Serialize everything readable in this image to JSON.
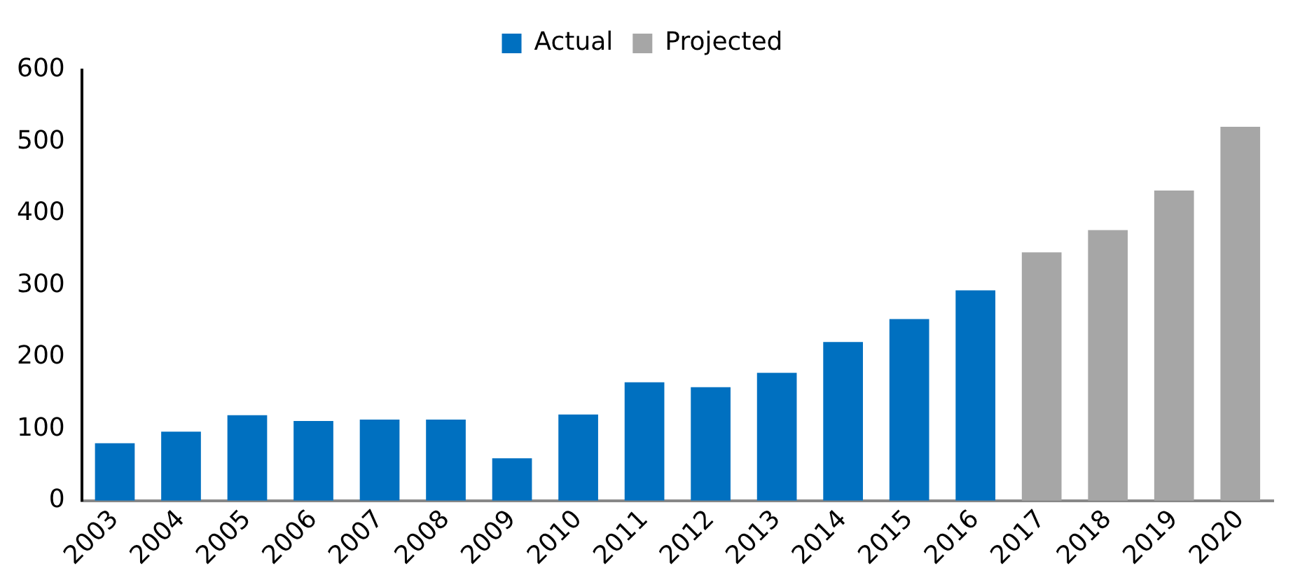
{
  "chart_data": {
    "type": "bar",
    "categories": [
      "2003",
      "2004",
      "2005",
      "2006",
      "2007",
      "2008",
      "2009",
      "2010",
      "2011",
      "2012",
      "2013",
      "2014",
      "2015",
      "2016",
      "2017",
      "2018",
      "2019",
      "2020"
    ],
    "series": [
      {
        "name": "Actual",
        "color": "#0070c0",
        "values": [
          80,
          96,
          119,
          111,
          113,
          113,
          59,
          120,
          165,
          158,
          178,
          221,
          253,
          293,
          null,
          null,
          null,
          null
        ]
      },
      {
        "name": "Projected",
        "color": "#a6a6a6",
        "values": [
          null,
          null,
          null,
          null,
          null,
          null,
          null,
          null,
          null,
          null,
          null,
          null,
          null,
          null,
          346,
          377,
          432,
          521
        ]
      }
    ],
    "ylim": [
      0,
      600
    ],
    "yticks": [
      0,
      100,
      200,
      300,
      400,
      500,
      600
    ],
    "grid": false,
    "legend": "top"
  }
}
